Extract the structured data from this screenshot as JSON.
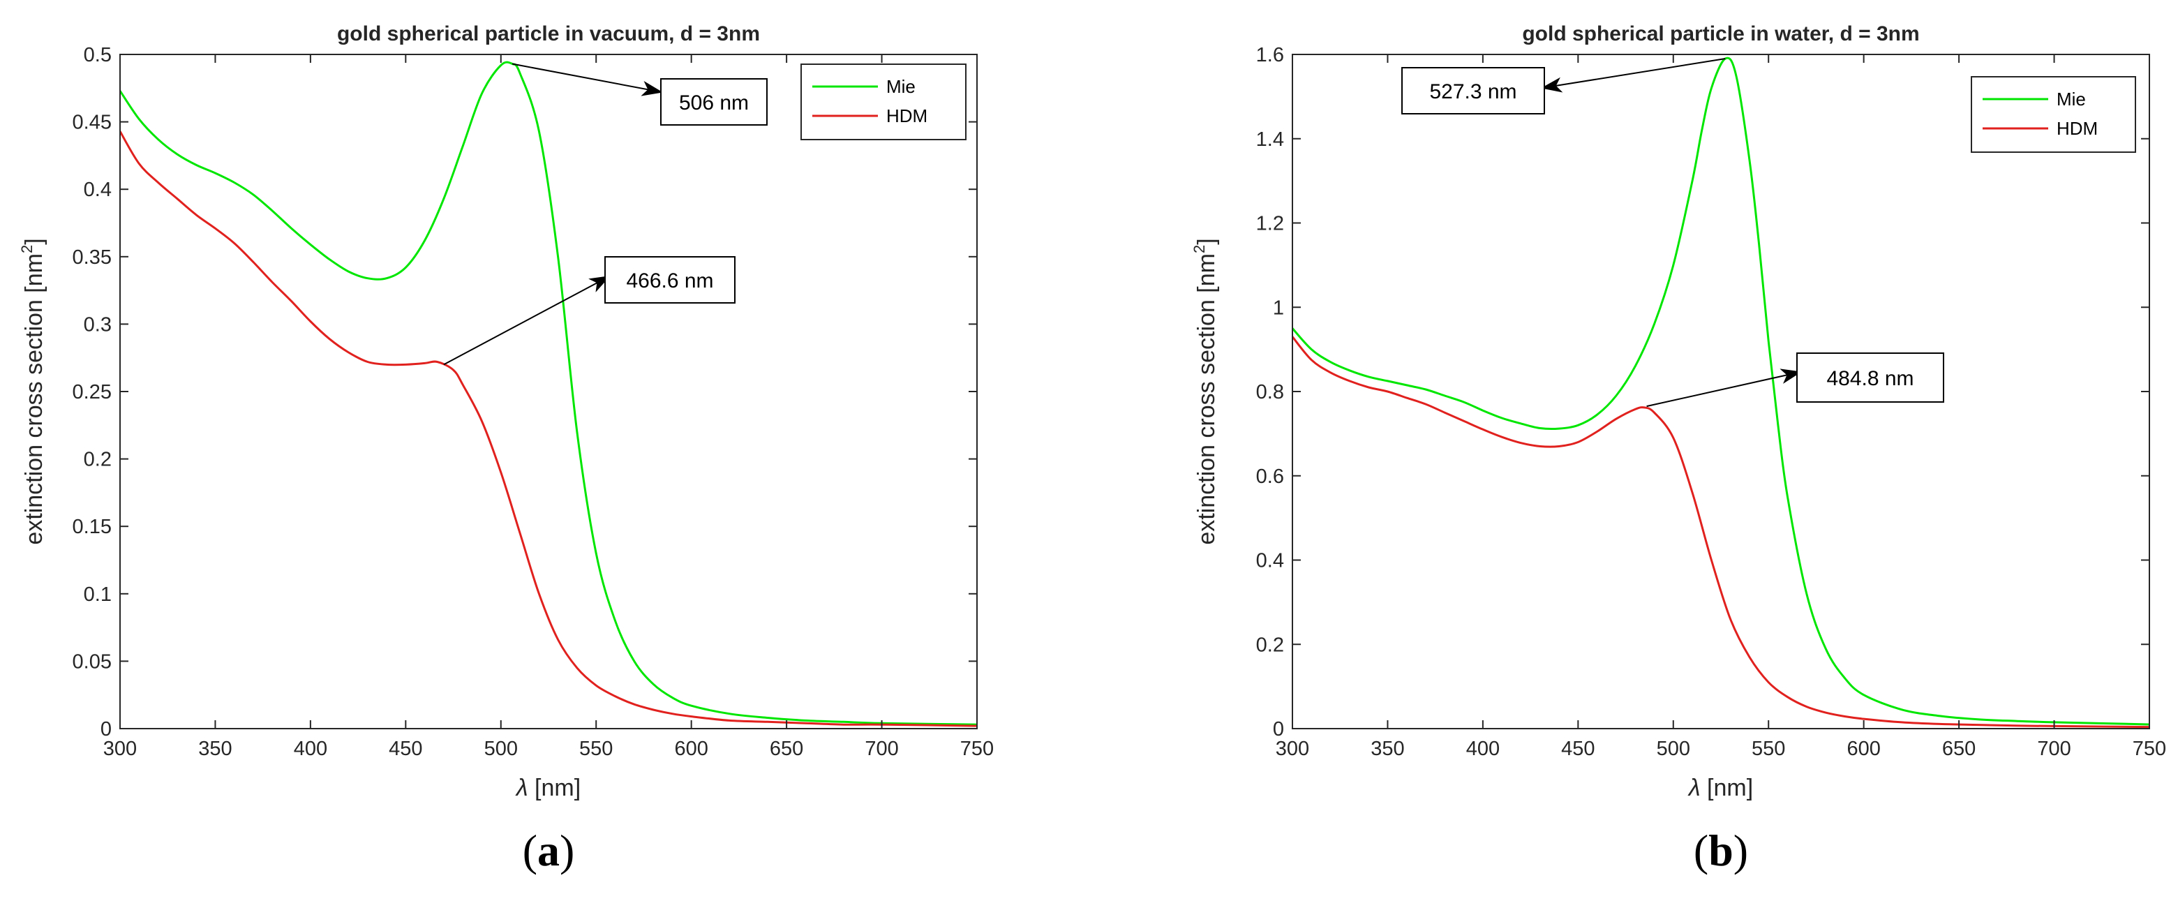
{
  "figure": {
    "panels": [
      {
        "label_open": "(",
        "label_letter": "a",
        "label_close": ")"
      },
      {
        "label_open": "(",
        "label_letter": "b",
        "label_close": ")"
      }
    ]
  },
  "colors": {
    "mie": "#00e600",
    "hdm": "#e0211d",
    "axis": "#262626"
  },
  "chart_data": [
    {
      "type": "line",
      "title": "gold spherical particle in vacuum, d = 3nm",
      "xlabel": "λ [nm]",
      "ylabel": "extinction cross section [nm²]",
      "ylabel_main": "extinction cross section [nm",
      "ylabel_sup": "2",
      "ylabel_end": "]",
      "xlabel_symbol": "λ",
      "xlabel_unit": " [nm]",
      "xlim": [
        300,
        750
      ],
      "ylim": [
        0,
        0.5
      ],
      "xticks": [
        "300",
        "350",
        "400",
        "450",
        "500",
        "550",
        "600",
        "650",
        "700",
        "750"
      ],
      "yticks": [
        "0",
        "0.05",
        "0.1",
        "0.15",
        "0.2",
        "0.25",
        "0.3",
        "0.35",
        "0.4",
        "0.45",
        "0.5"
      ],
      "legend_position": "top-right",
      "series": [
        {
          "name": "Mie",
          "x": [
            300,
            310,
            320,
            330,
            340,
            350,
            360,
            370,
            380,
            390,
            400,
            410,
            420,
            430,
            440,
            450,
            460,
            470,
            480,
            490,
            500,
            506,
            510,
            520,
            530,
            540,
            550,
            560,
            570,
            580,
            590,
            600,
            620,
            640,
            660,
            680,
            700,
            750
          ],
          "y": [
            0.473,
            0.452,
            0.437,
            0.426,
            0.418,
            0.412,
            0.405,
            0.396,
            0.384,
            0.371,
            0.359,
            0.348,
            0.339,
            0.334,
            0.334,
            0.342,
            0.362,
            0.393,
            0.432,
            0.471,
            0.492,
            0.493,
            0.486,
            0.443,
            0.35,
            0.22,
            0.13,
            0.08,
            0.05,
            0.033,
            0.023,
            0.017,
            0.011,
            0.008,
            0.006,
            0.005,
            0.004,
            0.003
          ]
        },
        {
          "name": "HDM",
          "x": [
            300,
            310,
            320,
            330,
            340,
            350,
            360,
            370,
            380,
            390,
            400,
            410,
            420,
            430,
            440,
            450,
            460,
            466.6,
            475,
            480,
            490,
            500,
            510,
            520,
            530,
            540,
            550,
            560,
            570,
            580,
            590,
            600,
            620,
            640,
            660,
            680,
            700,
            750
          ],
          "y": [
            0.443,
            0.419,
            0.405,
            0.393,
            0.381,
            0.371,
            0.36,
            0.346,
            0.331,
            0.317,
            0.302,
            0.289,
            0.279,
            0.272,
            0.27,
            0.27,
            0.271,
            0.272,
            0.266,
            0.255,
            0.228,
            0.19,
            0.145,
            0.1,
            0.066,
            0.045,
            0.032,
            0.024,
            0.018,
            0.014,
            0.011,
            0.009,
            0.006,
            0.005,
            0.004,
            0.003,
            0.003,
            0.002
          ]
        }
      ],
      "annotations": [
        {
          "text": "506 nm",
          "target": [
            506,
            0.493
          ]
        },
        {
          "text": "466.6 nm",
          "target": [
            470,
            0.27
          ]
        }
      ]
    },
    {
      "type": "line",
      "title": "gold spherical particle in water, d = 3nm",
      "xlabel": "λ [nm]",
      "ylabel": "extinction cross section [nm²]",
      "ylabel_main": "extinction cross section [nm",
      "ylabel_sup": "2",
      "ylabel_end": "]",
      "xlabel_symbol": "λ",
      "xlabel_unit": " [nm]",
      "xlim": [
        300,
        750
      ],
      "ylim": [
        0,
        1.6
      ],
      "xticks": [
        "300",
        "350",
        "400",
        "450",
        "500",
        "550",
        "600",
        "650",
        "700",
        "750"
      ],
      "yticks": [
        "0",
        "0.2",
        "0.4",
        "0.6",
        "0.8",
        "1",
        "1.2",
        "1.4",
        "1.6"
      ],
      "legend_position": "top-right",
      "series": [
        {
          "name": "Mie",
          "x": [
            300,
            310,
            320,
            330,
            340,
            350,
            360,
            370,
            380,
            390,
            400,
            410,
            420,
            430,
            440,
            450,
            460,
            470,
            480,
            490,
            500,
            510,
            515,
            520,
            527.3,
            533,
            540,
            545,
            550,
            555,
            560,
            570,
            580,
            590,
            600,
            620,
            640,
            660,
            680,
            700,
            750
          ],
          "y": [
            0.95,
            0.9,
            0.87,
            0.85,
            0.835,
            0.825,
            0.815,
            0.805,
            0.79,
            0.775,
            0.755,
            0.737,
            0.724,
            0.713,
            0.712,
            0.72,
            0.745,
            0.79,
            0.86,
            0.96,
            1.1,
            1.3,
            1.42,
            1.52,
            1.59,
            1.55,
            1.35,
            1.15,
            0.92,
            0.72,
            0.55,
            0.32,
            0.19,
            0.12,
            0.08,
            0.045,
            0.03,
            0.022,
            0.018,
            0.015,
            0.01
          ]
        },
        {
          "name": "HDM",
          "x": [
            300,
            310,
            320,
            330,
            340,
            350,
            360,
            370,
            380,
            390,
            400,
            410,
            420,
            430,
            440,
            450,
            460,
            470,
            480,
            484.8,
            490,
            500,
            510,
            520,
            530,
            540,
            550,
            560,
            570,
            580,
            590,
            600,
            620,
            640,
            660,
            680,
            700,
            750
          ],
          "y": [
            0.93,
            0.875,
            0.845,
            0.825,
            0.81,
            0.8,
            0.785,
            0.77,
            0.75,
            0.73,
            0.71,
            0.692,
            0.678,
            0.67,
            0.67,
            0.68,
            0.705,
            0.735,
            0.758,
            0.762,
            0.75,
            0.69,
            0.56,
            0.4,
            0.26,
            0.17,
            0.11,
            0.075,
            0.052,
            0.038,
            0.029,
            0.023,
            0.015,
            0.011,
            0.009,
            0.007,
            0.006,
            0.004
          ]
        }
      ],
      "annotations": [
        {
          "text": "527.3 nm",
          "target": [
            527.3,
            1.59
          ]
        },
        {
          "text": "484.8 nm",
          "target": [
            486,
            0.765
          ]
        }
      ]
    }
  ]
}
